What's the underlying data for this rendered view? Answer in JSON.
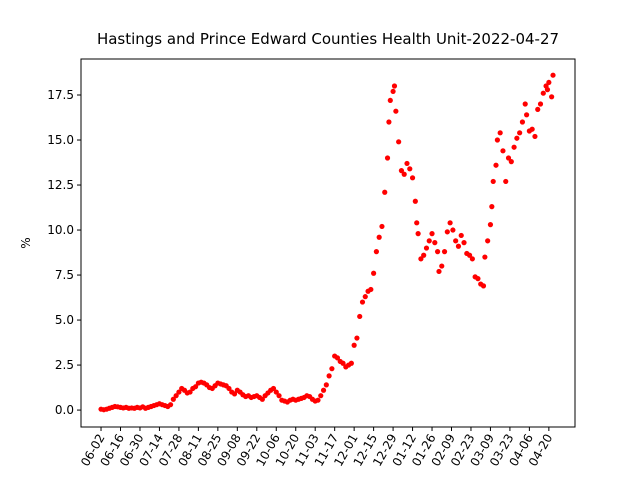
{
  "chart_data": {
    "type": "scatter",
    "title": "Hastings and Prince Edward Counties Health Unit-2022-04-27",
    "ylabel": "%",
    "color": "#ff0000",
    "x": [
      0,
      2,
      4,
      6,
      8,
      10,
      12,
      14,
      16,
      18,
      20,
      22,
      24,
      26,
      28,
      30,
      32,
      34,
      36,
      38,
      40,
      42,
      44,
      46,
      48,
      50,
      52,
      54,
      56,
      58,
      60,
      62,
      64,
      66,
      68,
      70,
      72,
      74,
      76,
      78,
      80,
      82,
      84,
      86,
      88,
      90,
      92,
      94,
      96,
      98,
      100,
      102,
      104,
      106,
      108,
      110,
      112,
      114,
      116,
      118,
      120,
      122,
      124,
      126,
      128,
      130,
      132,
      134,
      136,
      138,
      140,
      142,
      144,
      146,
      148,
      150,
      152,
      154,
      156,
      158,
      160,
      162,
      164,
      166,
      168,
      170,
      172,
      174,
      176,
      178,
      180,
      182,
      184,
      186,
      188,
      190,
      192,
      194,
      196,
      198,
      200,
      202,
      204,
      206,
      207,
      208,
      210,
      211,
      212,
      214,
      216,
      218,
      220,
      222,
      224,
      226,
      227,
      228,
      230,
      232,
      234,
      236,
      238,
      240,
      242,
      243,
      245,
      247,
      249,
      251,
      253,
      255,
      257,
      259,
      261,
      263,
      265,
      267,
      269,
      271,
      273,
      275,
      276,
      278,
      280,
      281,
      282,
      284,
      285,
      287,
      289,
      291,
      293,
      295,
      297,
      299,
      301,
      303,
      305,
      306,
      308,
      310,
      312,
      314,
      316,
      318,
      320,
      321,
      322,
      324,
      325
    ],
    "values": [
      0.05,
      0.02,
      0.05,
      0.1,
      0.15,
      0.2,
      0.18,
      0.15,
      0.12,
      0.15,
      0.1,
      0.12,
      0.1,
      0.15,
      0.12,
      0.18,
      0.1,
      0.15,
      0.2,
      0.25,
      0.3,
      0.35,
      0.3,
      0.25,
      0.2,
      0.3,
      0.6,
      0.8,
      1.0,
      1.2,
      1.1,
      0.95,
      1.0,
      1.2,
      1.3,
      1.5,
      1.55,
      1.5,
      1.4,
      1.25,
      1.2,
      1.35,
      1.5,
      1.45,
      1.4,
      1.35,
      1.2,
      1.0,
      0.9,
      1.1,
      1.0,
      0.85,
      0.75,
      0.8,
      0.7,
      0.75,
      0.8,
      0.7,
      0.6,
      0.8,
      0.95,
      1.1,
      1.2,
      1.0,
      0.8,
      0.55,
      0.5,
      0.45,
      0.55,
      0.6,
      0.55,
      0.6,
      0.65,
      0.7,
      0.8,
      0.75,
      0.6,
      0.5,
      0.55,
      0.8,
      1.1,
      1.4,
      1.9,
      2.3,
      3.0,
      2.9,
      2.7,
      2.6,
      2.4,
      2.5,
      2.6,
      3.6,
      4.0,
      5.2,
      6.0,
      6.3,
      6.6,
      6.7,
      7.6,
      8.8,
      9.6,
      10.2,
      12.1,
      14.0,
      16.0,
      17.2,
      17.7,
      18.0,
      16.6,
      14.9,
      13.3,
      13.1,
      13.7,
      13.4,
      12.9,
      11.6,
      10.4,
      9.8,
      8.4,
      8.6,
      9.0,
      9.4,
      9.8,
      9.3,
      8.8,
      7.7,
      8.0,
      8.8,
      9.9,
      10.4,
      10.0,
      9.4,
      9.1,
      9.7,
      9.3,
      8.7,
      8.6,
      8.4,
      7.4,
      7.3,
      7.0,
      6.9,
      8.5,
      9.4,
      10.3,
      11.3,
      12.7,
      13.6,
      15.0,
      15.4,
      14.4,
      12.7,
      14.0,
      13.8,
      14.6,
      15.1,
      15.4,
      16.0,
      17.0,
      16.4,
      15.5,
      15.6,
      15.2,
      16.7,
      17.0,
      17.6,
      18.0,
      17.8,
      18.2,
      17.4,
      18.6
    ],
    "xlim": [
      -14.4,
      340.8
    ],
    "ylim": [
      -0.94,
      19.5
    ],
    "xticks": [
      {
        "value": 0,
        "label": "06-02"
      },
      {
        "value": 14,
        "label": "06-16"
      },
      {
        "value": 28,
        "label": "06-30"
      },
      {
        "value": 42,
        "label": "07-14"
      },
      {
        "value": 56,
        "label": "07-28"
      },
      {
        "value": 70,
        "label": "08-11"
      },
      {
        "value": 84,
        "label": "08-25"
      },
      {
        "value": 98,
        "label": "09-08"
      },
      {
        "value": 112,
        "label": "09-22"
      },
      {
        "value": 126,
        "label": "10-06"
      },
      {
        "value": 140,
        "label": "10-20"
      },
      {
        "value": 154,
        "label": "11-03"
      },
      {
        "value": 168,
        "label": "11-17"
      },
      {
        "value": 182,
        "label": "12-01"
      },
      {
        "value": 196,
        "label": "12-15"
      },
      {
        "value": 210,
        "label": "12-29"
      },
      {
        "value": 224,
        "label": "01-12"
      },
      {
        "value": 238,
        "label": "01-26"
      },
      {
        "value": 252,
        "label": "02-09"
      },
      {
        "value": 266,
        "label": "02-23"
      },
      {
        "value": 280,
        "label": "03-09"
      },
      {
        "value": 294,
        "label": "03-23"
      },
      {
        "value": 308,
        "label": "04-06"
      },
      {
        "value": 322,
        "label": "04-20"
      }
    ],
    "yticks": [
      {
        "value": 0,
        "label": "0.0"
      },
      {
        "value": 2.5,
        "label": "2.5"
      },
      {
        "value": 5,
        "label": "5.0"
      },
      {
        "value": 7.5,
        "label": "7.5"
      },
      {
        "value": 10,
        "label": "10.0"
      },
      {
        "value": 12.5,
        "label": "12.5"
      },
      {
        "value": 15,
        "label": "15.0"
      },
      {
        "value": 17.5,
        "label": "17.5"
      }
    ]
  }
}
